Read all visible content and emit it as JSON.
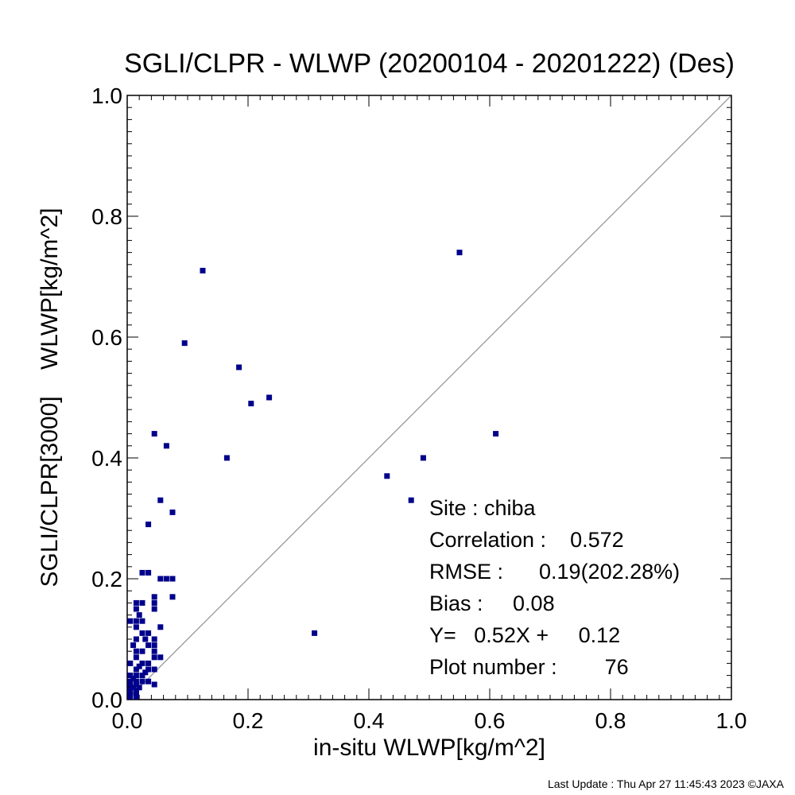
{
  "chart_data": {
    "type": "scatter",
    "title": "SGLI/CLPR - WLWP (20200104 - 20201222) (Des)",
    "xlabel": "in-situ WLWP[kg/m^2]",
    "ylabel": "SGLI/CLPR[3000]    WLWP[kg/m^2]",
    "xlim": [
      0.0,
      1.0
    ],
    "ylim": [
      0.0,
      1.0
    ],
    "x_ticks": [
      "0.0",
      "0.2",
      "0.4",
      "0.6",
      "0.8",
      "1.0"
    ],
    "y_ticks": [
      "0.0",
      "0.2",
      "0.4",
      "0.6",
      "0.8",
      "1.0"
    ],
    "grid": false,
    "reference_line": "1:1",
    "marker_color": "#00008B",
    "line_color": "#808080",
    "points": [
      {
        "x": 0.55,
        "y": 0.74
      },
      {
        "x": 0.125,
        "y": 0.71
      },
      {
        "x": 0.095,
        "y": 0.59
      },
      {
        "x": 0.185,
        "y": 0.55
      },
      {
        "x": 0.235,
        "y": 0.5
      },
      {
        "x": 0.205,
        "y": 0.49
      },
      {
        "x": 0.61,
        "y": 0.44
      },
      {
        "x": 0.045,
        "y": 0.44
      },
      {
        "x": 0.065,
        "y": 0.42
      },
      {
        "x": 0.165,
        "y": 0.4
      },
      {
        "x": 0.49,
        "y": 0.4
      },
      {
        "x": 0.43,
        "y": 0.37
      },
      {
        "x": 0.055,
        "y": 0.33
      },
      {
        "x": 0.47,
        "y": 0.33
      },
      {
        "x": 0.075,
        "y": 0.31
      },
      {
        "x": 0.035,
        "y": 0.29
      },
      {
        "x": 0.025,
        "y": 0.21
      },
      {
        "x": 0.035,
        "y": 0.21
      },
      {
        "x": 0.055,
        "y": 0.2
      },
      {
        "x": 0.065,
        "y": 0.2
      },
      {
        "x": 0.075,
        "y": 0.2
      },
      {
        "x": 0.075,
        "y": 0.17
      },
      {
        "x": 0.045,
        "y": 0.17
      },
      {
        "x": 0.045,
        "y": 0.16
      },
      {
        "x": 0.015,
        "y": 0.16
      },
      {
        "x": 0.025,
        "y": 0.16
      },
      {
        "x": 0.015,
        "y": 0.15
      },
      {
        "x": 0.045,
        "y": 0.15
      },
      {
        "x": 0.005,
        "y": 0.13
      },
      {
        "x": 0.015,
        "y": 0.13
      },
      {
        "x": 0.025,
        "y": 0.13
      },
      {
        "x": 0.055,
        "y": 0.12
      },
      {
        "x": 0.015,
        "y": 0.12
      },
      {
        "x": 0.025,
        "y": 0.11
      },
      {
        "x": 0.035,
        "y": 0.11
      },
      {
        "x": 0.31,
        "y": 0.11
      },
      {
        "x": 0.015,
        "y": 0.1
      },
      {
        "x": 0.045,
        "y": 0.1
      },
      {
        "x": 0.035,
        "y": 0.09
      },
      {
        "x": 0.045,
        "y": 0.09
      },
      {
        "x": 0.015,
        "y": 0.08
      },
      {
        "x": 0.025,
        "y": 0.08
      },
      {
        "x": 0.045,
        "y": 0.08
      },
      {
        "x": 0.015,
        "y": 0.07
      },
      {
        "x": 0.045,
        "y": 0.07
      },
      {
        "x": 0.055,
        "y": 0.07
      },
      {
        "x": 0.005,
        "y": 0.06
      },
      {
        "x": 0.025,
        "y": 0.06
      },
      {
        "x": 0.035,
        "y": 0.06
      },
      {
        "x": 0.015,
        "y": 0.05
      },
      {
        "x": 0.035,
        "y": 0.05
      },
      {
        "x": 0.045,
        "y": 0.05
      },
      {
        "x": 0.005,
        "y": 0.04
      },
      {
        "x": 0.015,
        "y": 0.04
      },
      {
        "x": 0.025,
        "y": 0.04
      },
      {
        "x": 0.005,
        "y": 0.03
      },
      {
        "x": 0.035,
        "y": 0.03
      },
      {
        "x": 0.015,
        "y": 0.03
      },
      {
        "x": 0.005,
        "y": 0.025
      },
      {
        "x": 0.015,
        "y": 0.025
      },
      {
        "x": 0.025,
        "y": 0.03
      },
      {
        "x": 0.045,
        "y": 0.025
      },
      {
        "x": 0.005,
        "y": 0.015
      },
      {
        "x": 0.015,
        "y": 0.015
      },
      {
        "x": 0.005,
        "y": 0.01
      },
      {
        "x": 0.015,
        "y": 0.01
      },
      {
        "x": 0.005,
        "y": 0.005
      },
      {
        "x": 0.015,
        "y": 0.005
      },
      {
        "x": 0.01,
        "y": 0.02
      },
      {
        "x": 0.02,
        "y": 0.02
      },
      {
        "x": 0.01,
        "y": 0.035
      },
      {
        "x": 0.03,
        "y": 0.045
      },
      {
        "x": 0.02,
        "y": 0.055
      },
      {
        "x": 0.01,
        "y": 0.09
      },
      {
        "x": 0.03,
        "y": 0.1
      },
      {
        "x": 0.02,
        "y": 0.14
      }
    ],
    "stats": {
      "site": "Site : chiba",
      "correlation": "Correlation :    0.572",
      "rmse": "RMSE :      0.19(202.28%)",
      "bias": "Bias :     0.08",
      "regression": "Y=   0.52X +     0.12",
      "plot_number": "Plot number :        76"
    }
  },
  "footer": "Last Update : Thu Apr 27 11:45:43 2023  ©JAXA"
}
